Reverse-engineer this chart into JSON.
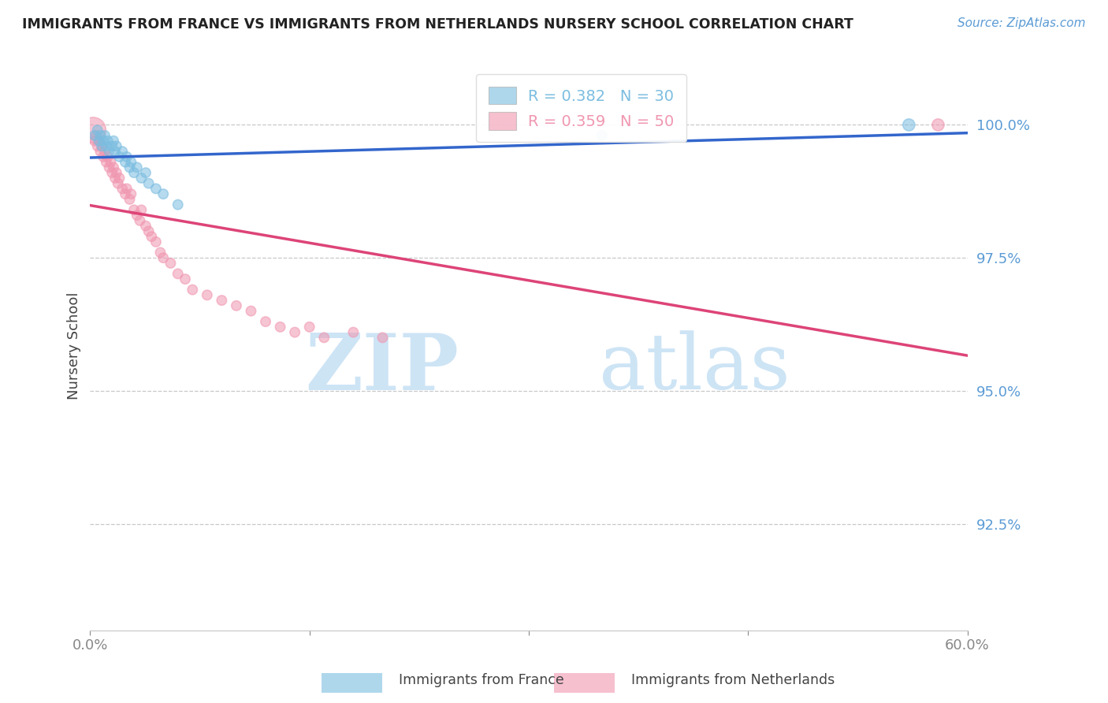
{
  "title": "IMMIGRANTS FROM FRANCE VS IMMIGRANTS FROM NETHERLANDS NURSERY SCHOOL CORRELATION CHART",
  "source": "Source: ZipAtlas.com",
  "ylabel": "Nursery School",
  "ytick_labels": [
    "100.0%",
    "97.5%",
    "95.0%",
    "92.5%"
  ],
  "ytick_values": [
    1.0,
    0.975,
    0.95,
    0.925
  ],
  "xlim": [
    0.0,
    0.6
  ],
  "ylim": [
    0.905,
    1.012
  ],
  "legend1_text": "R = 0.382   N = 30",
  "legend2_text": "R = 0.359   N = 50",
  "france_color": "#7bbde0",
  "netherlands_color": "#f096b0",
  "france_line_color": "#3366cc",
  "netherlands_line_color": "#dd4477",
  "watermark_zip": "ZIP",
  "watermark_atlas": "atlas",
  "watermark_color": "#cde4f5",
  "france_scatter_x": [
    0.003,
    0.005,
    0.006,
    0.007,
    0.008,
    0.009,
    0.01,
    0.011,
    0.012,
    0.013,
    0.015,
    0.016,
    0.017,
    0.018,
    0.02,
    0.022,
    0.024,
    0.025,
    0.027,
    0.028,
    0.03,
    0.032,
    0.035,
    0.038,
    0.04,
    0.045,
    0.05,
    0.06,
    0.35,
    0.56
  ],
  "france_scatter_y": [
    0.998,
    0.999,
    0.997,
    0.998,
    0.996,
    0.997,
    0.998,
    0.996,
    0.997,
    0.995,
    0.996,
    0.997,
    0.995,
    0.996,
    0.994,
    0.995,
    0.993,
    0.994,
    0.992,
    0.993,
    0.991,
    0.992,
    0.99,
    0.991,
    0.989,
    0.988,
    0.987,
    0.985,
    0.998,
    1.0
  ],
  "france_scatter_size": [
    80,
    80,
    80,
    80,
    80,
    80,
    80,
    80,
    80,
    80,
    80,
    80,
    80,
    80,
    80,
    80,
    80,
    80,
    80,
    80,
    80,
    80,
    80,
    80,
    80,
    80,
    80,
    80,
    80,
    120
  ],
  "netherlands_scatter_x": [
    0.002,
    0.003,
    0.004,
    0.005,
    0.006,
    0.007,
    0.008,
    0.009,
    0.01,
    0.011,
    0.012,
    0.013,
    0.014,
    0.015,
    0.016,
    0.017,
    0.018,
    0.019,
    0.02,
    0.022,
    0.024,
    0.025,
    0.027,
    0.028,
    0.03,
    0.032,
    0.034,
    0.035,
    0.038,
    0.04,
    0.042,
    0.045,
    0.048,
    0.05,
    0.055,
    0.06,
    0.065,
    0.07,
    0.08,
    0.09,
    0.1,
    0.11,
    0.12,
    0.13,
    0.14,
    0.15,
    0.16,
    0.18,
    0.2,
    0.58
  ],
  "netherlands_scatter_y": [
    0.999,
    0.997,
    0.998,
    0.996,
    0.997,
    0.995,
    0.996,
    0.994,
    0.995,
    0.993,
    0.994,
    0.992,
    0.993,
    0.991,
    0.992,
    0.99,
    0.991,
    0.989,
    0.99,
    0.988,
    0.987,
    0.988,
    0.986,
    0.987,
    0.984,
    0.983,
    0.982,
    0.984,
    0.981,
    0.98,
    0.979,
    0.978,
    0.976,
    0.975,
    0.974,
    0.972,
    0.971,
    0.969,
    0.968,
    0.967,
    0.966,
    0.965,
    0.963,
    0.962,
    0.961,
    0.962,
    0.96,
    0.961,
    0.96,
    1.0
  ],
  "netherlands_scatter_size": [
    550,
    80,
    80,
    80,
    80,
    80,
    80,
    80,
    80,
    80,
    80,
    80,
    80,
    80,
    80,
    80,
    80,
    80,
    80,
    80,
    80,
    80,
    80,
    80,
    80,
    80,
    80,
    80,
    80,
    80,
    80,
    80,
    80,
    80,
    80,
    80,
    80,
    80,
    80,
    80,
    80,
    80,
    80,
    80,
    80,
    80,
    80,
    80,
    80,
    120
  ]
}
